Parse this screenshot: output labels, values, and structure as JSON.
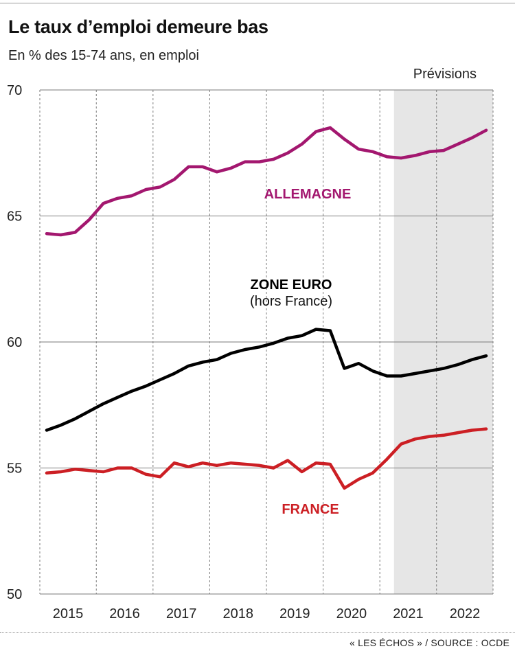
{
  "header": {
    "title": "Le taux d’emploi demeure bas",
    "subtitle": "En % des 15-74 ans, en emploi"
  },
  "footer": {
    "source": "« LES ÉCHOS » / SOURCE :  OCDE"
  },
  "colors": {
    "allemagne": "#a3176f",
    "zone_euro": "#000000",
    "france": "#cc1f24",
    "forecast_shade": "#e6e6e6",
    "grid_solid": "#7a7a7a",
    "grid_dotted": "#7a7a7a"
  },
  "chart_data": {
    "type": "line",
    "title": "Le taux d’emploi demeure bas",
    "subtitle": "En % des 15-74 ans, en emploi",
    "ylim": [
      50,
      70
    ],
    "yticks": [
      50,
      55,
      60,
      65,
      70
    ],
    "x_categories": [
      "2015",
      "2016",
      "2017",
      "2018",
      "2019",
      "2020",
      "2021",
      "2022"
    ],
    "x_quarter_range": [
      0,
      31
    ],
    "grid": true,
    "forecast": {
      "label": "Prévisions",
      "from_x": 24.5,
      "to_x": 31.5
    },
    "annotations": [
      {
        "series": "allemagne",
        "text": "ALLEMAGNE"
      },
      {
        "series": "zone_euro",
        "text": "ZONE EURO",
        "subtext": "(hors France)"
      },
      {
        "series": "france",
        "text": "FRANCE"
      }
    ],
    "series": [
      {
        "key": "allemagne",
        "name": "ALLEMAGNE",
        "x": [
          0,
          1,
          2,
          3,
          4,
          5,
          6,
          7,
          8,
          9,
          10,
          11,
          12,
          13,
          14,
          15,
          16,
          17,
          18,
          19,
          20,
          21,
          22,
          23,
          24,
          25,
          26,
          27,
          28,
          29,
          30,
          31
        ],
        "values": [
          64.3,
          64.25,
          64.35,
          64.85,
          65.5,
          65.7,
          65.8,
          66.05,
          66.15,
          66.45,
          66.95,
          66.95,
          66.75,
          66.9,
          67.15,
          67.15,
          67.25,
          67.5,
          67.85,
          68.35,
          68.5,
          68.05,
          67.65,
          67.55,
          67.35,
          67.3,
          67.4,
          67.55,
          67.6,
          67.85,
          68.1,
          68.4
        ]
      },
      {
        "key": "zone_euro",
        "name": "ZONE EURO",
        "x": [
          0,
          1,
          2,
          3,
          4,
          5,
          6,
          7,
          8,
          9,
          10,
          11,
          12,
          13,
          14,
          15,
          16,
          17,
          18,
          19,
          20,
          21,
          22,
          23,
          24,
          25,
          26,
          27,
          28,
          29,
          30,
          31
        ],
        "values": [
          56.5,
          56.7,
          56.95,
          57.25,
          57.55,
          57.8,
          58.05,
          58.25,
          58.5,
          58.75,
          59.05,
          59.2,
          59.3,
          59.55,
          59.7,
          59.8,
          59.95,
          60.15,
          60.25,
          60.5,
          60.45,
          58.95,
          59.15,
          58.85,
          58.65,
          58.65,
          58.75,
          58.85,
          58.95,
          59.1,
          59.3,
          59.45
        ]
      },
      {
        "key": "france",
        "name": "FRANCE",
        "x": [
          0,
          1,
          2,
          3,
          4,
          5,
          6,
          7,
          8,
          9,
          10,
          11,
          12,
          13,
          14,
          15,
          16,
          17,
          18,
          19,
          20,
          21,
          22,
          23,
          24,
          25,
          26,
          27,
          28,
          29,
          30,
          31
        ],
        "values": [
          54.8,
          54.85,
          54.95,
          54.9,
          54.85,
          55.0,
          55.0,
          54.75,
          54.65,
          55.2,
          55.05,
          55.2,
          55.1,
          55.2,
          55.15,
          55.1,
          55.0,
          55.3,
          54.85,
          55.2,
          55.15,
          54.2,
          54.55,
          54.8,
          55.35,
          55.95,
          56.15,
          56.25,
          56.3,
          56.4,
          56.5,
          56.55
        ]
      }
    ]
  }
}
